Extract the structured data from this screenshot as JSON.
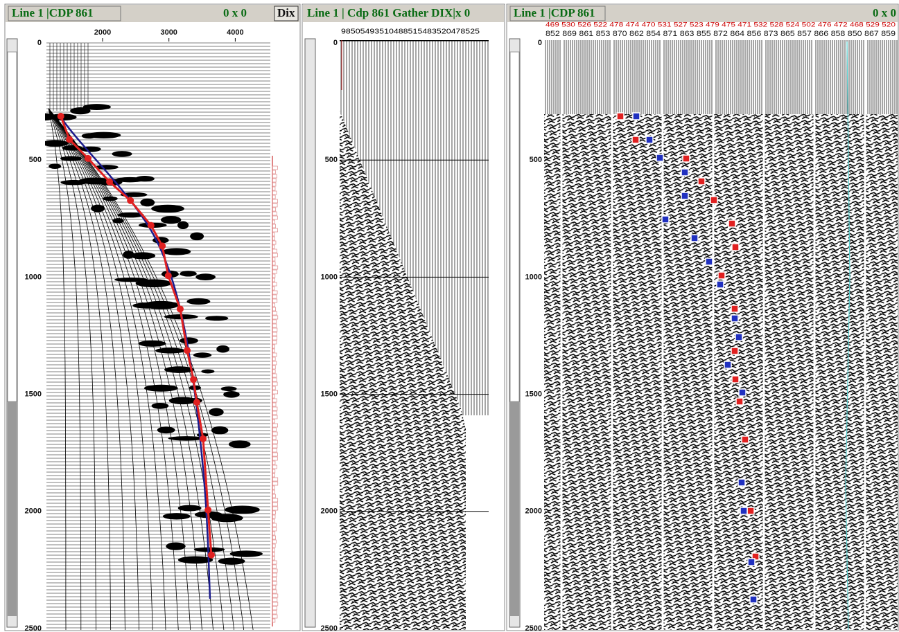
{
  "panels": [
    {
      "title": "Line 1 |CDP 861",
      "zoom": "0 x 0",
      "button": "Dix",
      "x_ticks": [
        2000,
        3000,
        4000
      ],
      "y_ticks": [
        0,
        500,
        1000,
        1500,
        2000,
        2500
      ],
      "velocity_picks": [
        {
          "time": 313,
          "velocity": 1370
        },
        {
          "time": 412,
          "velocity": 1500
        },
        {
          "time": 493,
          "velocity": 1780
        },
        {
          "time": 593,
          "velocity": 2105
        },
        {
          "time": 673,
          "velocity": 2420
        },
        {
          "time": 779,
          "velocity": 2730
        },
        {
          "time": 867,
          "velocity": 2900
        },
        {
          "time": 994,
          "velocity": 2990
        },
        {
          "time": 1136,
          "velocity": 3170
        },
        {
          "time": 1313,
          "velocity": 3275
        },
        {
          "time": 1437,
          "velocity": 3370
        },
        {
          "time": 1534,
          "velocity": 3420
        },
        {
          "time": 1690,
          "velocity": 3515
        },
        {
          "time": 1994,
          "velocity": 3590
        },
        {
          "time": 2186,
          "velocity": 3640
        }
      ]
    },
    {
      "title": "Line 1 | Cdp 861  Gather DIX|x 0",
      "trace_labels": "98505493510488515483520478525",
      "y_ticks": [
        0,
        500,
        1000,
        1500,
        2000,
        2500
      ]
    },
    {
      "title": "Line 1 |CDP 861",
      "zoom": "0 x 0",
      "trace_labels_top": "469 530 526 522 478 474 470 531 527 523 479 475 471 532 528 524 502 476 472 468 529 520",
      "trace_labels": "852 869 861 853 870 862 854 871 863 855 872 864 856 873 865 857 866 858 850 867 859",
      "y_ticks": [
        0,
        500,
        1000,
        1500,
        2000,
        2500
      ]
    }
  ]
}
